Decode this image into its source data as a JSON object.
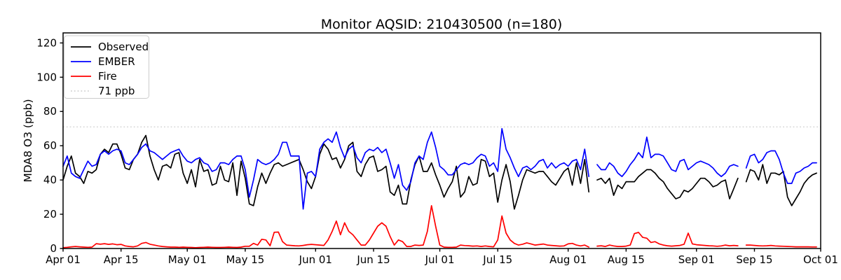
{
  "chart_data": {
    "type": "line",
    "title": "Monitor AQSID: 210430500 (n=180)",
    "ylabel": "MDA8 O3 (ppb)",
    "xlabel": "",
    "ylim": [
      0,
      125
    ],
    "yticks": [
      0,
      20,
      40,
      60,
      80,
      100,
      120
    ],
    "x_start_date": "Apr 01",
    "x_end_date": "Oct 01",
    "n_points_label": 180,
    "xticks": [
      {
        "label": "Apr 01",
        "day": 0
      },
      {
        "label": "Apr 15",
        "day": 14
      },
      {
        "label": "May 01",
        "day": 30
      },
      {
        "label": "May 15",
        "day": 44
      },
      {
        "label": "Jun 01",
        "day": 61
      },
      {
        "label": "Jun 15",
        "day": 75
      },
      {
        "label": "Jul 01",
        "day": 91
      },
      {
        "label": "Jul 15",
        "day": 105
      },
      {
        "label": "Aug 01",
        "day": 122
      },
      {
        "label": "Aug 15",
        "day": 136
      },
      {
        "label": "Sep 01",
        "day": 153
      },
      {
        "label": "Sep 15",
        "day": 167
      },
      {
        "label": "Oct 01",
        "day": 183
      }
    ],
    "threshold": {
      "label": "71 ppb",
      "value": 71,
      "color": "#d3d3d3",
      "style": "dotted"
    },
    "legend": {
      "position": "upper-left",
      "entries": [
        "Observed",
        "EMBER",
        "Fire",
        "71 ppb"
      ]
    },
    "series": [
      {
        "name": "Observed",
        "color": "#000000",
        "style": "solid",
        "values": [
          40,
          48,
          54,
          44,
          42,
          38,
          45,
          44,
          46,
          55,
          58,
          56,
          61,
          61,
          55,
          47,
          46,
          52,
          55,
          62,
          66,
          54,
          46,
          40,
          48,
          49,
          47,
          55,
          56,
          44,
          38,
          46,
          36,
          52,
          45,
          46,
          37,
          38,
          48,
          40,
          39,
          50,
          31,
          51,
          41,
          26,
          25,
          36,
          44,
          38,
          44,
          49,
          50,
          48,
          49,
          50,
          51,
          52,
          46,
          39,
          35,
          42,
          55,
          61,
          58,
          52,
          53,
          47,
          52,
          60,
          62,
          45,
          42,
          49,
          53,
          54,
          45,
          46,
          48,
          33,
          31,
          37,
          26,
          26,
          40,
          49,
          54,
          45,
          45,
          50,
          43,
          37,
          30,
          35,
          39,
          48,
          30,
          33,
          42,
          37,
          38,
          52,
          51,
          42,
          44,
          27,
          40,
          49,
          39,
          23,
          31,
          40,
          46,
          45,
          44,
          45,
          45,
          42,
          39,
          37,
          41,
          45,
          47,
          37,
          50,
          38,
          52,
          33,
          null,
          40,
          41,
          38,
          41,
          31,
          37,
          35,
          39,
          39,
          39,
          42,
          44,
          46,
          46,
          44,
          41,
          39,
          35,
          32,
          29,
          30,
          34,
          33,
          35,
          38,
          41,
          41,
          39,
          36,
          37,
          39,
          40,
          29,
          35,
          41,
          null,
          39,
          46,
          45,
          40,
          49,
          38,
          44,
          44,
          43,
          45,
          30,
          25,
          29,
          33,
          38,
          41,
          43,
          44
        ]
      },
      {
        "name": "EMBER",
        "color": "#0000ff",
        "style": "solid",
        "values": [
          48,
          54,
          44,
          42,
          41,
          46,
          51,
          48,
          49,
          55,
          57,
          55,
          57,
          58,
          57,
          50,
          49,
          52,
          55,
          59,
          61,
          57,
          56,
          54,
          52,
          54,
          56,
          57,
          58,
          54,
          51,
          50,
          52,
          53,
          50,
          49,
          45,
          46,
          50,
          50,
          49,
          52,
          54,
          54,
          46,
          30,
          40,
          52,
          50,
          49,
          50,
          52,
          55,
          62,
          62,
          54,
          54,
          54,
          23,
          44,
          45,
          42,
          58,
          62,
          64,
          62,
          68,
          59,
          53,
          58,
          60,
          53,
          50,
          56,
          58,
          57,
          59,
          56,
          58,
          50,
          41,
          49,
          37,
          34,
          39,
          50,
          54,
          52,
          62,
          68,
          59,
          48,
          46,
          43,
          43,
          46,
          49,
          50,
          49,
          50,
          53,
          55,
          54,
          48,
          50,
          45,
          70,
          58,
          53,
          47,
          42,
          47,
          48,
          46,
          48,
          51,
          52,
          47,
          50,
          47,
          49,
          50,
          48,
          51,
          52,
          46,
          58,
          42,
          null,
          49,
          46,
          46,
          50,
          48,
          44,
          42,
          45,
          49,
          52,
          56,
          53,
          65,
          53,
          55,
          55,
          54,
          50,
          46,
          45,
          51,
          52,
          46,
          48,
          50,
          51,
          50,
          49,
          47,
          44,
          42,
          44,
          48,
          49,
          48,
          null,
          47,
          54,
          55,
          50,
          52,
          56,
          57,
          57,
          52,
          44,
          38,
          38,
          44,
          45,
          47,
          48,
          50,
          50
        ]
      },
      {
        "name": "Fire",
        "color": "#ff0000",
        "style": "solid",
        "values": [
          0.5,
          0.7,
          1,
          1.2,
          1,
          0.8,
          0.7,
          0.8,
          2.8,
          2.5,
          2.8,
          2.4,
          2.7,
          2.2,
          2.4,
          1.5,
          1.2,
          1,
          1.5,
          3,
          3.5,
          2.5,
          2,
          1.5,
          1.2,
          1,
          0.8,
          0.8,
          0.7,
          0.8,
          0.7,
          0.6,
          0.5,
          0.6,
          0.7,
          0.8,
          0.7,
          0.6,
          0.6,
          0.7,
          0.8,
          0.7,
          0.6,
          0.8,
          1.3,
          1.3,
          3,
          2,
          5.4,
          5,
          1.6,
          9.5,
          9.6,
          4,
          2,
          1.8,
          1.6,
          1.5,
          1.8,
          2.2,
          2.4,
          2.2,
          2,
          1.8,
          5,
          10,
          16,
          8,
          15,
          10,
          8,
          5,
          2,
          2,
          5,
          9,
          13,
          15,
          13,
          7,
          2,
          5,
          4,
          1.2,
          1.2,
          2,
          1.8,
          2,
          10,
          25,
          13,
          2,
          0.8,
          0.7,
          0.7,
          0.8,
          2,
          1.7,
          1.6,
          1.4,
          1.5,
          1.2,
          1.5,
          1.2,
          1,
          5,
          19,
          9,
          5,
          3,
          2,
          2.5,
          3.3,
          2.7,
          2,
          2.3,
          2.6,
          2,
          1.8,
          1.6,
          1.4,
          1.5,
          2.7,
          3,
          2,
          1.5,
          2,
          0.8,
          null,
          1.4,
          1.6,
          1.2,
          2,
          1.5,
          1.2,
          1.2,
          1.4,
          2,
          8.7,
          9.4,
          6.5,
          6,
          3.5,
          4,
          2.7,
          2,
          1.6,
          1.4,
          1.6,
          1.8,
          2.5,
          9,
          2.7,
          2.2,
          2,
          1.8,
          1.6,
          1.5,
          1.3,
          1.5,
          2,
          1.6,
          1.8,
          1.6,
          null,
          2,
          2,
          1.8,
          1.6,
          1.5,
          1.6,
          1.8,
          1.5,
          1.4,
          1.3,
          1.2,
          1.1,
          1,
          1,
          1,
          1,
          0.9,
          0.9
        ]
      }
    ]
  }
}
